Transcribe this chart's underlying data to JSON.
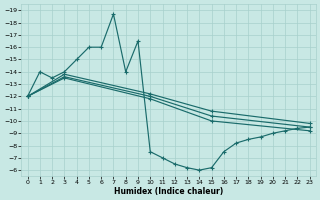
{
  "xlabel": "Humidex (Indice chaleur)",
  "xlim": [
    -0.5,
    23.5
  ],
  "ylim": [
    -19.5,
    -5.5
  ],
  "yticks": [
    -6,
    -7,
    -8,
    -9,
    -10,
    -11,
    -12,
    -13,
    -14,
    -15,
    -16,
    -17,
    -18,
    -19
  ],
  "xticks": [
    0,
    1,
    2,
    3,
    4,
    5,
    6,
    7,
    8,
    9,
    10,
    11,
    12,
    13,
    14,
    15,
    16,
    17,
    18,
    19,
    20,
    21,
    22,
    23
  ],
  "bg_color": "#c8e8e4",
  "grid_color": "#a8d0cc",
  "line_color": "#1a6b6b",
  "curve_main_x": [
    0,
    1,
    2,
    3,
    4,
    5,
    6,
    7,
    8,
    9,
    10,
    11,
    12,
    13,
    14,
    15,
    16,
    17,
    18,
    19,
    20,
    21,
    22,
    23
  ],
  "curve_main_y": [
    -12,
    -14,
    -13.5,
    -14.0,
    -15.0,
    -16.0,
    -16.0,
    -18.7,
    -14.0,
    -16.5,
    -7.5,
    -7.0,
    -6.5,
    -6.2,
    -6.0,
    -6.2,
    -7.5,
    -8.2,
    -8.5,
    -8.7,
    -9.0,
    -9.2,
    -9.4,
    -9.5
  ],
  "curve2_x": [
    0,
    3,
    10,
    15,
    23
  ],
  "curve2_y": [
    -12,
    -13.5,
    -11.8,
    -10.0,
    -9.2
  ],
  "curve3_x": [
    0,
    3,
    10,
    15,
    23
  ],
  "curve3_y": [
    -12,
    -13.6,
    -12.0,
    -10.4,
    -9.5
  ],
  "curve4_x": [
    0,
    3,
    10,
    15,
    23
  ],
  "curve4_y": [
    -12,
    -13.8,
    -12.2,
    -10.8,
    -9.8
  ]
}
